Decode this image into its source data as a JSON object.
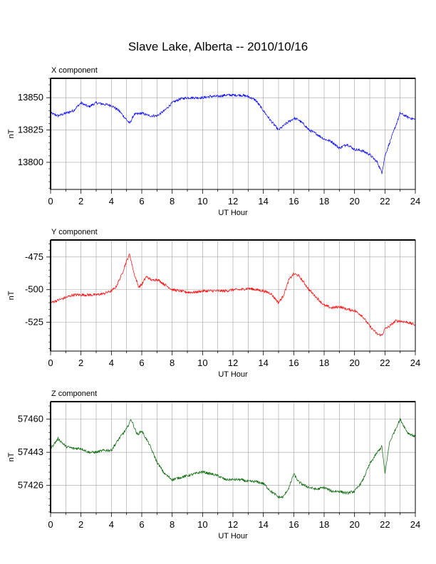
{
  "title": "Slave Lake, Alberta -- 2010/10/16",
  "chart_data": [
    {
      "type": "line",
      "panel_title": "X component",
      "xlabel": "UT Hour",
      "ylabel": "nT",
      "xlim": [
        0,
        24
      ],
      "ylim": [
        13779,
        13865
      ],
      "xticks": [
        0,
        2,
        4,
        6,
        8,
        10,
        12,
        14,
        16,
        18,
        20,
        22,
        24
      ],
      "yticks": [
        13800,
        13825,
        13850
      ],
      "grid": true,
      "color": "#0000ff",
      "x": [
        0,
        0.5,
        1,
        1.5,
        2,
        2.5,
        3,
        3.5,
        4,
        4.5,
        5,
        5.2,
        5.5,
        6,
        6.5,
        7,
        7.5,
        8,
        8.5,
        9,
        9.5,
        10,
        10.5,
        11,
        11.5,
        12,
        12.5,
        13,
        13.5,
        14,
        14.5,
        15,
        15.5,
        16,
        16.3,
        16.7,
        17,
        17.5,
        18,
        18.5,
        19,
        19.5,
        20,
        20.5,
        21,
        21.5,
        21.8,
        22,
        22.3,
        22.7,
        23,
        23.5,
        24
      ],
      "y": [
        13838,
        13836,
        13838,
        13840,
        13846,
        13843,
        13846,
        13845,
        13844,
        13840,
        13833,
        13830,
        13837,
        13838,
        13836,
        13836,
        13840,
        13846,
        13849,
        13850,
        13850,
        13850,
        13851,
        13851,
        13852,
        13852,
        13852,
        13851,
        13848,
        13840,
        13832,
        13825,
        13830,
        13834,
        13833,
        13829,
        13825,
        13822,
        13818,
        13816,
        13811,
        13814,
        13810,
        13809,
        13806,
        13800,
        13792,
        13805,
        13815,
        13828,
        13838,
        13835,
        13833
      ]
    },
    {
      "type": "line",
      "panel_title": "Y component",
      "xlabel": "UT Hour",
      "ylabel": "nT",
      "xlim": [
        0,
        24
      ],
      "ylim": [
        -547,
        -462
      ],
      "xticks": [
        0,
        2,
        4,
        6,
        8,
        10,
        12,
        14,
        16,
        18,
        20,
        22,
        24
      ],
      "yticks": [
        -475,
        -500,
        -525
      ],
      "grid": true,
      "color": "#ff0000",
      "x": [
        0,
        0.5,
        1,
        1.5,
        2,
        2.5,
        3,
        3.5,
        4,
        4.3,
        4.7,
        5,
        5.2,
        5.5,
        5.8,
        6,
        6.3,
        6.7,
        7,
        7.5,
        8,
        8.5,
        9,
        9.5,
        10,
        10.5,
        11,
        11.5,
        12,
        12.5,
        13,
        13.5,
        14,
        14.5,
        15,
        15.3,
        15.7,
        16,
        16.3,
        16.7,
        17,
        17.5,
        18,
        18.5,
        19,
        19.5,
        20,
        20.5,
        21,
        21.5,
        21.8,
        22,
        22.3,
        22.7,
        23,
        23.5,
        24
      ],
      "y": [
        -510,
        -508,
        -506,
        -504,
        -504,
        -504,
        -504,
        -503,
        -501,
        -498,
        -488,
        -478,
        -473,
        -488,
        -498,
        -496,
        -490,
        -493,
        -492,
        -496,
        -500,
        -501,
        -502,
        -502,
        -501,
        -501,
        -501,
        -501,
        -500,
        -500,
        -499,
        -500,
        -501,
        -503,
        -510,
        -505,
        -492,
        -488,
        -489,
        -495,
        -500,
        -506,
        -512,
        -514,
        -513,
        -515,
        -516,
        -520,
        -528,
        -534,
        -535,
        -530,
        -528,
        -524,
        -524,
        -525,
        -527
      ]
    },
    {
      "type": "line",
      "panel_title": "Z component",
      "xlabel": "UT Hour",
      "ylabel": "nT",
      "xlim": [
        0,
        24
      ],
      "ylim": [
        57412,
        57469
      ],
      "xticks": [
        0,
        2,
        4,
        6,
        8,
        10,
        12,
        14,
        16,
        18,
        20,
        22,
        24
      ],
      "yticks": [
        57460,
        57443,
        57426
      ],
      "grid": true,
      "color": "#006400",
      "x": [
        0,
        0.5,
        1,
        1.5,
        2,
        2.5,
        3,
        3.5,
        4,
        4.5,
        5,
        5.3,
        5.7,
        6,
        6.5,
        7,
        7.5,
        8,
        8.5,
        9,
        9.5,
        10,
        10.5,
        11,
        11.5,
        12,
        12.5,
        13,
        13.5,
        14,
        14.5,
        15,
        15.3,
        15.7,
        16,
        16.3,
        16.7,
        17,
        17.5,
        18,
        18.5,
        19,
        19.5,
        20,
        20.5,
        21,
        21.5,
        21.8,
        22,
        22.3,
        22.7,
        23,
        23.5,
        24
      ],
      "y": [
        57445,
        57450,
        57446,
        57445,
        57445,
        57443,
        57443,
        57444,
        57444,
        57450,
        57455,
        57460,
        57452,
        57454,
        57447,
        57438,
        57432,
        57429,
        57430,
        57431,
        57432,
        57433,
        57432,
        57431,
        57429,
        57429,
        57429,
        57428,
        57428,
        57427,
        57423,
        57420,
        57420,
        57425,
        57432,
        57428,
        57426,
        57425,
        57424,
        57425,
        57423,
        57423,
        57422,
        57423,
        57428,
        57437,
        57443,
        57446,
        57432,
        57448,
        57455,
        57460,
        57453,
        57451
      ]
    }
  ]
}
